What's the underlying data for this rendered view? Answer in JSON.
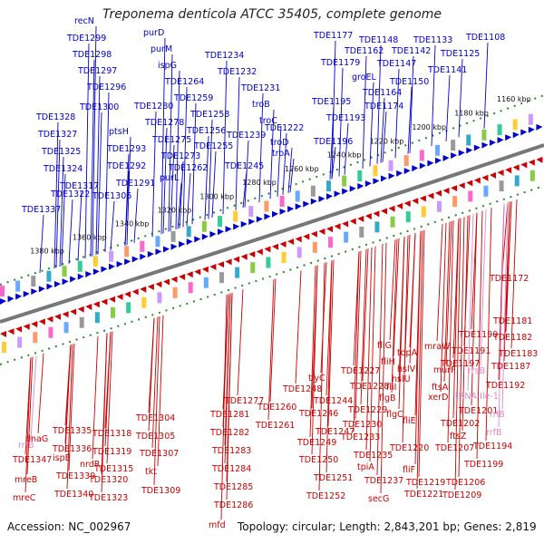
{
  "title": "Treponema denticola ATCC 35405, complete genome",
  "footer": {
    "accession": "Accession: NC_002967",
    "topology": "Topology: circular; Length: 2,843,201 bp; Genes: 2,819"
  },
  "colors": {
    "forward": "#0000cc",
    "reverse": "#cc0000",
    "rna": "#dd88cc",
    "backbone": "#777777",
    "gc_marks": "#2a8a2a"
  },
  "ruler": [
    "1160 kbp",
    "1180 kbp",
    "1200 kbp",
    "1220 kbp",
    "1240 kbp",
    "1260 kbp",
    "1280 kbp",
    "1300 kbp",
    "1320 kbp",
    "1340 kbp",
    "1360 kbp",
    "1380 kbp"
  ],
  "labels_forward": [
    "recN",
    "TDE1299",
    "TDE1298",
    "TDE1297",
    "TDE1296",
    "TDE1300",
    "TDE1328",
    "TDE1327",
    "TDE1325",
    "TDE1324",
    "TDE1317",
    "TDE1322",
    "TDE1337",
    "ptsH",
    "TDE1293",
    "TDE1292",
    "TDE1291",
    "TDE1306",
    "purD",
    "purM",
    "ispG",
    "TDE1264",
    "TDE1259",
    "TDE1280",
    "TDE1258",
    "TDE1278",
    "TDE1256",
    "TDE1275",
    "TDE1255",
    "TDE1273",
    "purL",
    "TDE1262",
    "TDE1234",
    "TDE1232",
    "TDE1231",
    "troB",
    "troC",
    "TDE1239",
    "TDE1245",
    "TDE1222",
    "troD",
    "troA",
    "TDE1177",
    "TDE1148",
    "TDE1133",
    "TDE1108",
    "TDE1162",
    "TDE1142",
    "TDE1125",
    "TDE1179",
    "TDE1147",
    "TDE1141",
    "groEL",
    "TDE1150",
    "TDE1164",
    "TDE1195",
    "TDE1174",
    "TDE1193",
    "TDE1196"
  ],
  "labels_reverse": [
    "TDE1172",
    "TDE1181",
    "TDE1182",
    "TDE1190",
    "TDE1183",
    "TDE1191",
    "TDE1187",
    "TDE1192",
    "mraW",
    "murF",
    "TDE1197",
    "topA",
    "fliG",
    "fliH",
    "hslV",
    "TDE1227",
    "fliI",
    "hslU",
    "ftsA",
    "xerD",
    "flgB",
    "TDE1201",
    "fliE",
    "flgC",
    "TDE1202",
    "ftsZ",
    "TDE1207",
    "TDE1194",
    "TDE1199",
    "TDE1206",
    "TDE1209",
    "TDE1220",
    "fliF",
    "TDE1219",
    "TDE1221",
    "TDE1228",
    "TDE1229",
    "TDE1230",
    "TDE1233",
    "TDE1235",
    "tpiA",
    "TDE1237",
    "secG",
    "tlyC",
    "TDE1248",
    "TDE1244",
    "TDE1246",
    "TDE1247",
    "TDE1249",
    "TDE1250",
    "TDE1251",
    "TDE1252",
    "TDE1260",
    "TDE1261",
    "TDE1277",
    "TDE1281",
    "TDE1282",
    "TDE1283",
    "TDE1284",
    "TDE1285",
    "TDE1286",
    "mfd",
    "TDE1304",
    "TDE1305",
    "TDE1307",
    "tkt",
    "TDE1309",
    "TDE1318",
    "TDE1319",
    "TDE1315",
    "TDE1320",
    "TDE1323",
    "nrdR",
    "TDE1335",
    "TDE1336",
    "TDE1339",
    "TDE1340",
    "dnaG",
    "ispE",
    "TDE1347",
    "mreB",
    "mreC"
  ],
  "labels_rna": [
    "rrsB",
    "tRNA-Ile-1",
    "rrlB",
    "rrfB",
    "rrfB"
  ]
}
